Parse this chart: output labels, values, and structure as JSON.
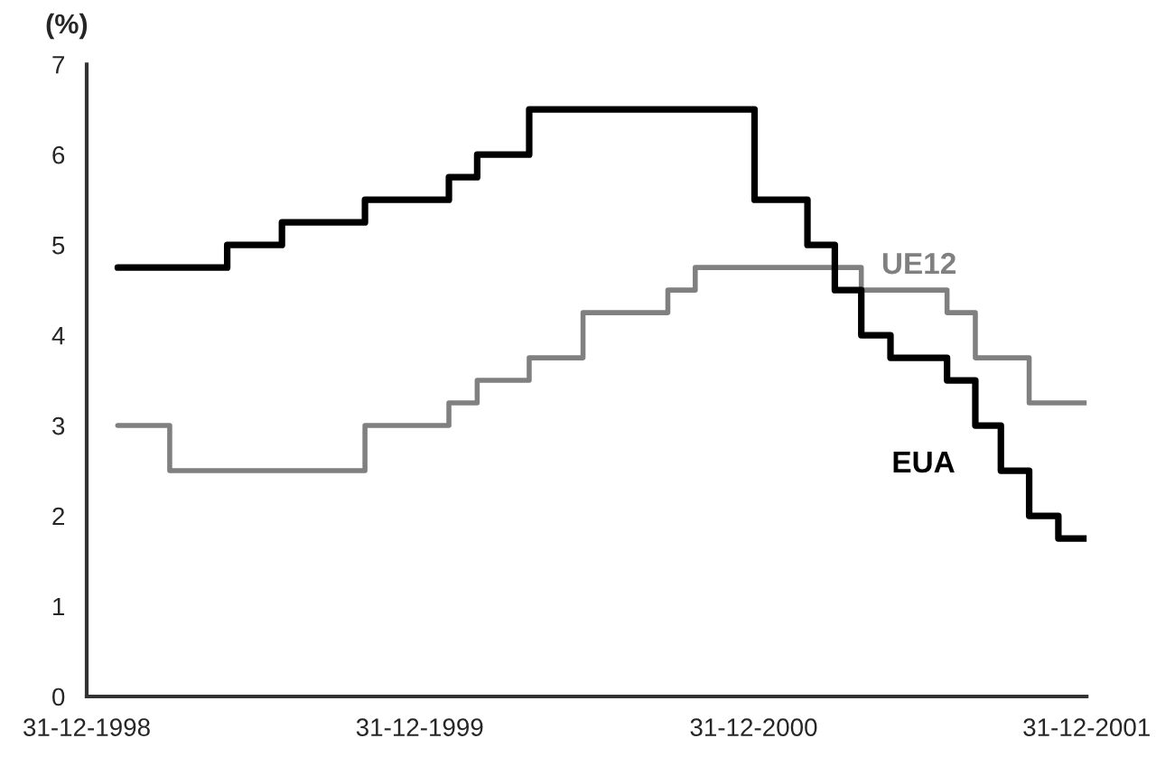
{
  "chart_data": {
    "type": "step",
    "ylabel": "(%)",
    "xlim": [
      "1998-12-31",
      "2001-12-31"
    ],
    "xticks": [
      {
        "value": "1998-12-31",
        "label": "31-12-1998"
      },
      {
        "value": "1999-12-31",
        "label": "31-12-1999"
      },
      {
        "value": "2000-12-31",
        "label": "31-12-2000"
      },
      {
        "value": "2001-12-31",
        "label": "31-12-2001"
      }
    ],
    "ylim": [
      0,
      7
    ],
    "yticks": [
      0,
      1,
      2,
      3,
      4,
      5,
      6,
      7
    ],
    "grid": false,
    "legend": false,
    "marker": "none",
    "line_style": "solid",
    "series": [
      {
        "name": "UE12",
        "color": "#808080",
        "x": [
          "1999-02-03",
          "1999-04-01",
          "1999-11-01",
          "2000-02-01",
          "2000-03-03",
          "2000-04-29",
          "2000-06-27",
          "2000-09-28",
          "2000-10-28",
          "2001-04-28",
          "2001-07-31",
          "2001-08-31",
          "2001-10-29",
          "2001-12-31"
        ],
        "values": [
          3.0,
          2.5,
          3.0,
          3.25,
          3.5,
          3.75,
          4.25,
          4.5,
          4.75,
          4.5,
          4.25,
          3.75,
          3.25,
          3.25
        ]
      },
      {
        "name": "EUA",
        "color": "#000000",
        "x": [
          "1999-02-03",
          "1999-06-03",
          "1999-08-02",
          "1999-11-01",
          "2000-02-01",
          "2000-03-03",
          "2000-04-29",
          "2001-01-01",
          "2001-02-28",
          "2001-03-30",
          "2001-04-28",
          "2001-05-30",
          "2001-07-31",
          "2001-08-31",
          "2001-09-28",
          "2001-10-29",
          "2001-11-30",
          "2001-12-31"
        ],
        "values": [
          4.75,
          5.0,
          5.25,
          5.5,
          5.75,
          6.0,
          6.5,
          5.5,
          5.0,
          4.5,
          4.0,
          3.75,
          3.5,
          3.0,
          2.5,
          2.0,
          1.75,
          1.75
        ]
      }
    ]
  }
}
